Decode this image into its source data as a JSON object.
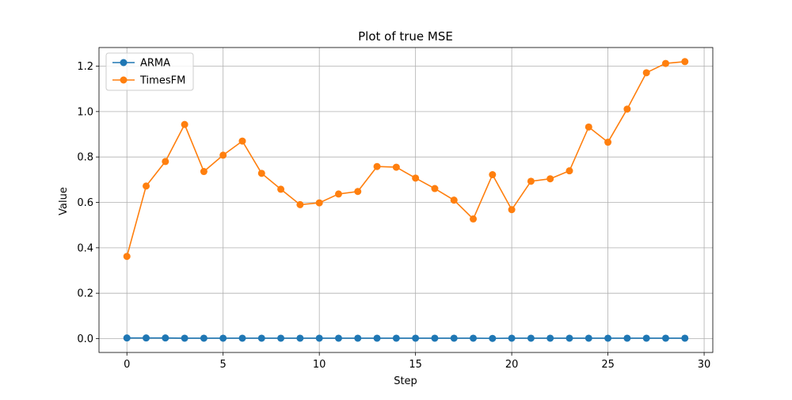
{
  "chart_data": {
    "type": "line",
    "title": "Plot of true MSE",
    "xlabel": "Step",
    "ylabel": "Value",
    "xlim": [
      -1.45,
      30.45
    ],
    "ylim": [
      -0.061,
      1.282
    ],
    "xticks": [
      0,
      5,
      10,
      15,
      20,
      25,
      30
    ],
    "yticks": [
      0.0,
      0.2,
      0.4,
      0.6,
      0.8,
      1.0,
      1.2
    ],
    "xtick_labels": [
      "0",
      "5",
      "10",
      "15",
      "20",
      "25",
      "30"
    ],
    "ytick_labels": [
      "0.0",
      "0.2",
      "0.4",
      "0.6",
      "0.8",
      "1.0",
      "1.2"
    ],
    "grid": true,
    "legend_position": "upper-left",
    "x": [
      0,
      1,
      2,
      3,
      4,
      5,
      6,
      7,
      8,
      9,
      10,
      11,
      12,
      13,
      14,
      15,
      16,
      17,
      18,
      19,
      20,
      21,
      22,
      23,
      24,
      25,
      26,
      27,
      28,
      29
    ],
    "series": [
      {
        "name": "ARMA",
        "color": "#1f77b4",
        "marker": "circle",
        "values": [
          0.003,
          0.003,
          0.003,
          0.002,
          0.002,
          0.002,
          0.002,
          0.002,
          0.002,
          0.002,
          0.002,
          0.002,
          0.002,
          0.002,
          0.002,
          0.002,
          0.002,
          0.002,
          0.002,
          0.001,
          0.002,
          0.002,
          0.002,
          0.002,
          0.002,
          0.002,
          0.002,
          0.002,
          0.002,
          0.002
        ]
      },
      {
        "name": "TimesFM",
        "color": "#ff7f0e",
        "marker": "circle",
        "values": [
          0.362,
          0.672,
          0.78,
          0.943,
          0.736,
          0.808,
          0.87,
          0.728,
          0.658,
          0.59,
          0.598,
          0.637,
          0.648,
          0.758,
          0.755,
          0.707,
          0.661,
          0.61,
          0.527,
          0.722,
          0.568,
          0.693,
          0.704,
          0.739,
          0.932,
          0.865,
          1.011,
          1.171,
          1.212,
          1.22
        ]
      }
    ]
  }
}
